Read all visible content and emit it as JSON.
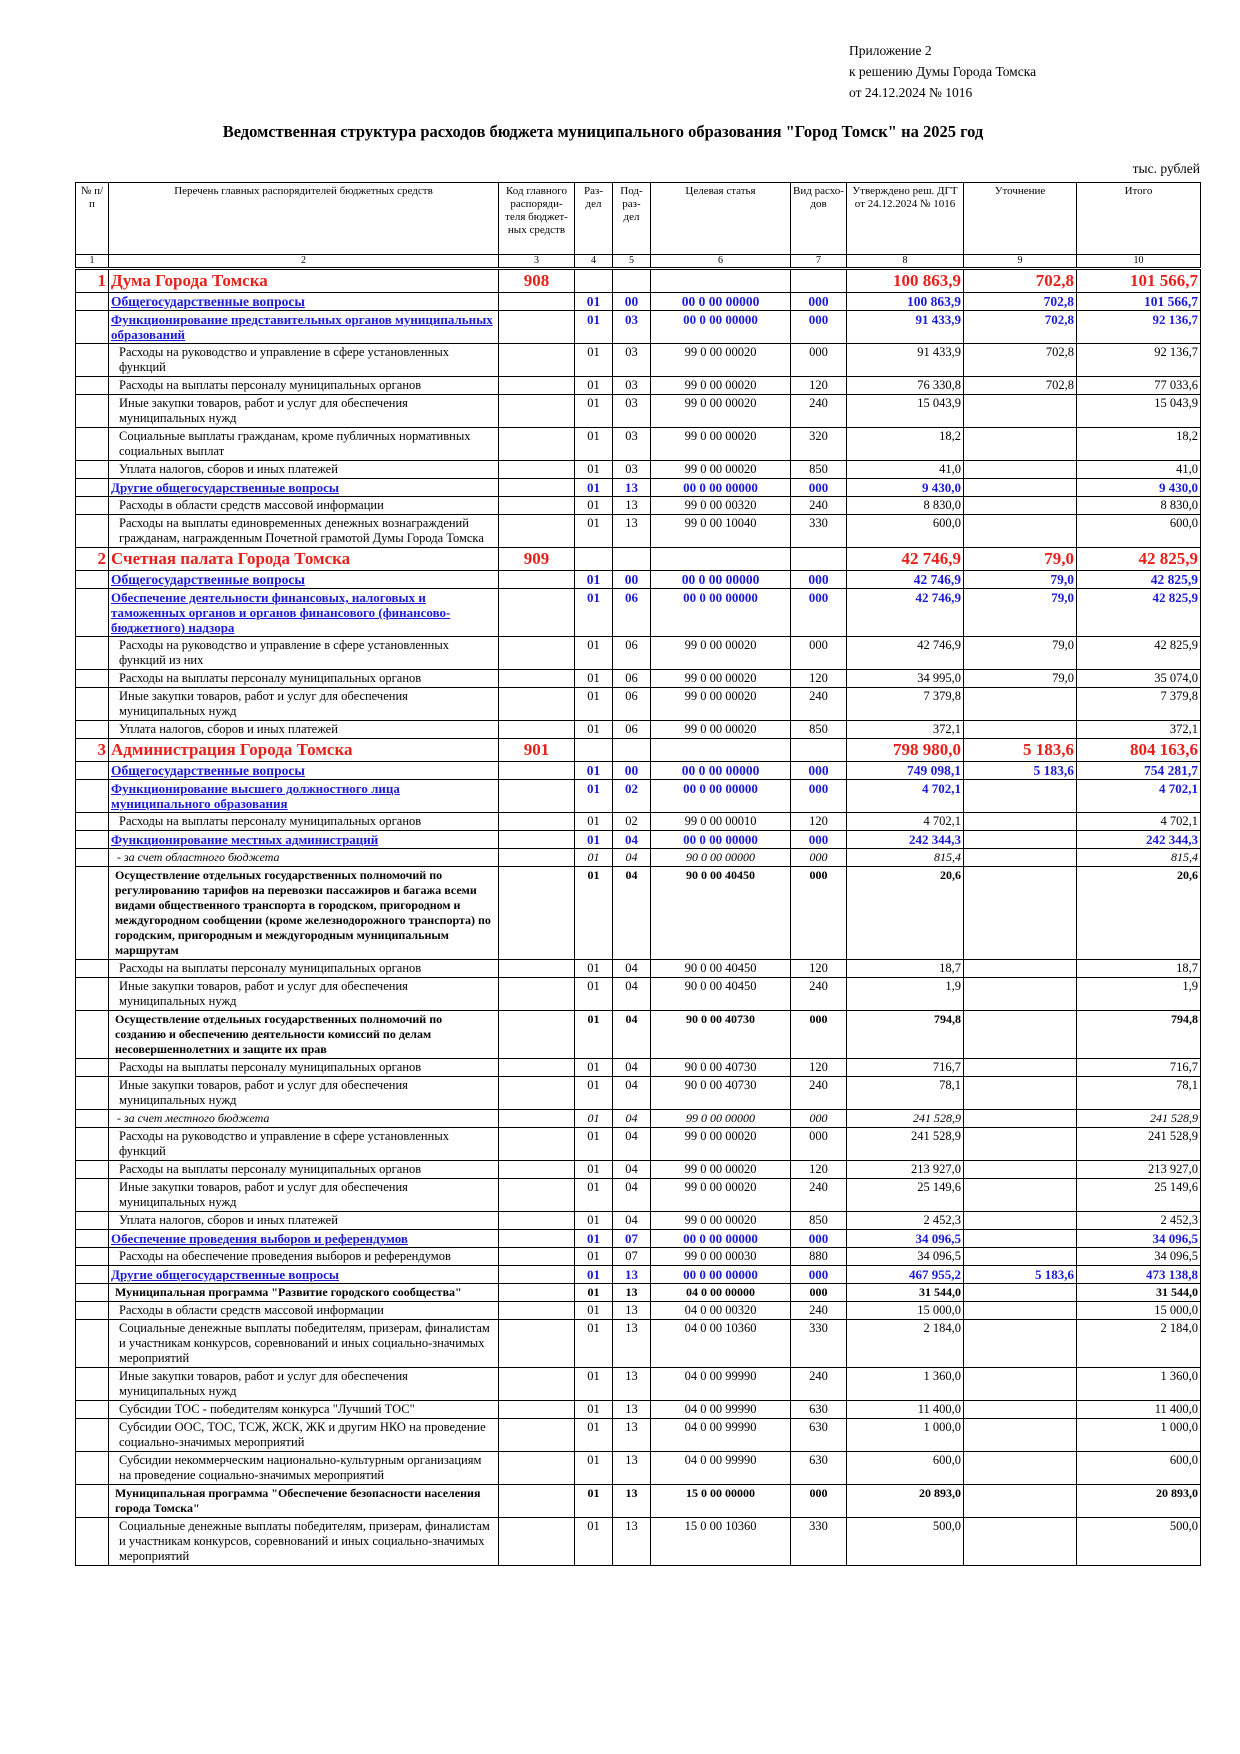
{
  "appendix": {
    "line1": "Приложение 2",
    "line2": "к решению Думы Города Томска",
    "line3": "от 24.12.2024 № 1016"
  },
  "title": "Ведомственная структура расходов бюджета муниципального образования \"Город Томск\" на 2025 год",
  "units": "тыс. рублей",
  "colors": {
    "org": "#e8201a",
    "section": "#1a1ad8"
  },
  "headers": [
    "№ п/п",
    "Перечень главных распорядителей бюджетных средств",
    "Код главного распоряди-теля бюджет-ных средств",
    "Раз-дел",
    "Под-раз-дел",
    "Целевая статья",
    "Вид расхо-дов",
    "Утверждено реш. ДГТ от 24.12.2024 № 1016",
    "Уточнение",
    "Итого"
  ],
  "col_numbers": [
    "1",
    "2",
    "3",
    "4",
    "5",
    "6",
    "7",
    "8",
    "9",
    "10"
  ],
  "rows": [
    {
      "level": "org",
      "num": "1",
      "name": "Дума Города Томска",
      "code": "908",
      "razdel": "",
      "podrazdel": "",
      "cs": "",
      "vr": "",
      "approved": "100 863,9",
      "change": "702,8",
      "total": "101 566,7"
    },
    {
      "level": "sec",
      "num": "",
      "name": "Общегосударственные вопросы",
      "code": "",
      "razdel": "01",
      "podrazdel": "00",
      "cs": "00 0 00 00000",
      "vr": "000",
      "approved": "100 863,9",
      "change": "702,8",
      "total": "101 566,7"
    },
    {
      "level": "sub",
      "num": "",
      "name": "Функционирование представительных органов муниципальных образований",
      "code": "",
      "razdel": "01",
      "podrazdel": "03",
      "cs": "00 0 00 00000",
      "vr": "000",
      "approved": "91 433,9",
      "change": "702,8",
      "total": "92 136,7"
    },
    {
      "level": "item",
      "num": "",
      "name": "Расходы на руководство и управление в сфере установленных функций",
      "code": "",
      "razdel": "01",
      "podrazdel": "03",
      "cs": "99 0 00 00020",
      "vr": "000",
      "approved": "91 433,9",
      "change": "702,8",
      "total": "92 136,7"
    },
    {
      "level": "item",
      "num": "",
      "name": "Расходы на выплаты персоналу муниципальных органов",
      "code": "",
      "razdel": "01",
      "podrazdel": "03",
      "cs": "99 0 00 00020",
      "vr": "120",
      "approved": "76 330,8",
      "change": "702,8",
      "total": "77 033,6"
    },
    {
      "level": "item",
      "num": "",
      "name": "Иные закупки товаров, работ и услуг для обеспечения муниципальных нужд",
      "code": "",
      "razdel": "01",
      "podrazdel": "03",
      "cs": "99 0 00 00020",
      "vr": "240",
      "approved": "15 043,9",
      "change": "",
      "total": "15 043,9"
    },
    {
      "level": "item",
      "num": "",
      "name": "Социальные выплаты гражданам, кроме публичных нормативных социальных выплат",
      "code": "",
      "razdel": "01",
      "podrazdel": "03",
      "cs": "99 0 00 00020",
      "vr": "320",
      "approved": "18,2",
      "change": "",
      "total": "18,2"
    },
    {
      "level": "item",
      "num": "",
      "name": "Уплата налогов, сборов и иных платежей",
      "code": "",
      "razdel": "01",
      "podrazdel": "03",
      "cs": "99 0 00 00020",
      "vr": "850",
      "approved": "41,0",
      "change": "",
      "total": "41,0"
    },
    {
      "level": "sub",
      "num": "",
      "name": "Другие общегосударственные вопросы",
      "code": "",
      "razdel": "01",
      "podrazdel": "13",
      "cs": "00 0 00 00000",
      "vr": "000",
      "approved": "9 430,0",
      "change": "",
      "total": "9 430,0"
    },
    {
      "level": "item",
      "num": "",
      "name": "Расходы в области средств массовой информации",
      "code": "",
      "razdel": "01",
      "podrazdel": "13",
      "cs": "99 0 00 00320",
      "vr": "240",
      "approved": "8 830,0",
      "change": "",
      "total": "8 830,0"
    },
    {
      "level": "item",
      "num": "",
      "name": "Расходы на выплаты единовременных денежных вознаграждений гражданам, награжденным Почетной грамотой Думы Города Томска",
      "code": "",
      "razdel": "01",
      "podrazdel": "13",
      "cs": "99 0 00 10040",
      "vr": "330",
      "approved": "600,0",
      "change": "",
      "total": "600,0"
    },
    {
      "level": "org",
      "num": "2",
      "name": "Счетная палата Города Томска",
      "code": "909",
      "razdel": "",
      "podrazdel": "",
      "cs": "",
      "vr": "",
      "approved": "42 746,9",
      "change": "79,0",
      "total": "42 825,9"
    },
    {
      "level": "sec",
      "num": "",
      "name": "Общегосударственные вопросы",
      "code": "",
      "razdel": "01",
      "podrazdel": "00",
      "cs": "00 0 00 00000",
      "vr": "000",
      "approved": "42 746,9",
      "change": "79,0",
      "total": "42 825,9"
    },
    {
      "level": "sub",
      "num": "",
      "name": "Обеспечение деятельности финансовых, налоговых и таможенных органов и органов финансового (финансово-бюджетного) надзора",
      "code": "",
      "razdel": "01",
      "podrazdel": "06",
      "cs": "00 0 00 00000",
      "vr": "000",
      "approved": "42 746,9",
      "change": "79,0",
      "total": "42 825,9"
    },
    {
      "level": "item",
      "num": "",
      "name": "Расходы на руководство и управление в сфере установленных функций из них",
      "code": "",
      "razdel": "01",
      "podrazdel": "06",
      "cs": "99 0 00 00020",
      "vr": "000",
      "approved": "42 746,9",
      "change": "79,0",
      "total": "42 825,9"
    },
    {
      "level": "item",
      "num": "",
      "name": "Расходы на выплаты персоналу муниципальных органов",
      "code": "",
      "razdel": "01",
      "podrazdel": "06",
      "cs": "99 0 00 00020",
      "vr": "120",
      "approved": "34 995,0",
      "change": "79,0",
      "total": "35 074,0"
    },
    {
      "level": "item",
      "num": "",
      "name": "Иные закупки товаров, работ и услуг для обеспечения муниципальных нужд",
      "code": "",
      "razdel": "01",
      "podrazdel": "06",
      "cs": "99 0 00 00020",
      "vr": "240",
      "approved": "7 379,8",
      "change": "",
      "total": "7 379,8"
    },
    {
      "level": "item",
      "num": "",
      "name": "Уплата налогов, сборов и иных платежей",
      "code": "",
      "razdel": "01",
      "podrazdel": "06",
      "cs": "99 0 00 00020",
      "vr": "850",
      "approved": "372,1",
      "change": "",
      "total": "372,1"
    },
    {
      "level": "org",
      "num": "3",
      "name": "Администрация Города Томска",
      "code": "901",
      "razdel": "",
      "podrazdel": "",
      "cs": "",
      "vr": "",
      "approved": "798 980,0",
      "change": "5 183,6",
      "total": "804 163,6"
    },
    {
      "level": "sec",
      "num": "",
      "name": "Общегосударственные вопросы",
      "code": "",
      "razdel": "01",
      "podrazdel": "00",
      "cs": "00 0 00 00000",
      "vr": "000",
      "approved": "749 098,1",
      "change": "5 183,6",
      "total": "754 281,7"
    },
    {
      "level": "sub",
      "num": "",
      "name": "Функционирование высшего должностного лица муниципального образования",
      "code": "",
      "razdel": "01",
      "podrazdel": "02",
      "cs": "00 0 00 00000",
      "vr": "000",
      "approved": "4 702,1",
      "change": "",
      "total": "4 702,1"
    },
    {
      "level": "item",
      "num": "",
      "name": "Расходы на выплаты персоналу муниципальных органов",
      "code": "",
      "razdel": "01",
      "podrazdel": "02",
      "cs": "99 0 00 00010",
      "vr": "120",
      "approved": "4 702,1",
      "change": "",
      "total": "4 702,1"
    },
    {
      "level": "sub",
      "num": "",
      "name": "Функционирование местных администраций",
      "code": "",
      "razdel": "01",
      "podrazdel": "04",
      "cs": "00 0 00 00000",
      "vr": "000",
      "approved": "242 344,3",
      "change": "",
      "total": "242 344,3"
    },
    {
      "level": "it",
      "num": "",
      "name": "- за счет областного бюджета",
      "code": "",
      "razdel": "01",
      "podrazdel": "04",
      "cs": "90 0 00 00000",
      "vr": "000",
      "approved": "815,4",
      "change": "",
      "total": "815,4"
    },
    {
      "level": "prog",
      "num": "",
      "name": "Осуществление отдельных государственных полномочий по регулированию тарифов на перевозки пассажиров и багажа всеми видами общественного транспорта в городском, пригородном и междугородном сообщении (кроме железнодорожного транспорта) по городским, пригородным и междугородным муниципальным маршрутам",
      "code": "",
      "razdel": "01",
      "podrazdel": "04",
      "cs": "90 0 00 40450",
      "vr": "000",
      "approved": "20,6",
      "change": "",
      "total": "20,6"
    },
    {
      "level": "item",
      "num": "",
      "name": "Расходы на выплаты персоналу муниципальных органов",
      "code": "",
      "razdel": "01",
      "podrazdel": "04",
      "cs": "90 0 00 40450",
      "vr": "120",
      "approved": "18,7",
      "change": "",
      "total": "18,7"
    },
    {
      "level": "item",
      "num": "",
      "name": "Иные закупки товаров, работ и услуг для обеспечения муниципальных нужд",
      "code": "",
      "razdel": "01",
      "podrazdel": "04",
      "cs": "90 0 00 40450",
      "vr": "240",
      "approved": "1,9",
      "change": "",
      "total": "1,9"
    },
    {
      "level": "prog",
      "num": "",
      "name": "Осуществление отдельных государственных полномочий по созданию и обеспечению деятельности комиссий по делам несовершеннолетних и защите их прав",
      "code": "",
      "razdel": "01",
      "podrazdel": "04",
      "cs": "90 0 00 40730",
      "vr": "000",
      "approved": "794,8",
      "change": "",
      "total": "794,8"
    },
    {
      "level": "item",
      "num": "",
      "name": "Расходы на выплаты персоналу муниципальных органов",
      "code": "",
      "razdel": "01",
      "podrazdel": "04",
      "cs": "90 0 00 40730",
      "vr": "120",
      "approved": "716,7",
      "change": "",
      "total": "716,7"
    },
    {
      "level": "item",
      "num": "",
      "name": "Иные закупки товаров, работ и услуг для обеспечения муниципальных нужд",
      "code": "",
      "razdel": "01",
      "podrazdel": "04",
      "cs": "90 0 00 40730",
      "vr": "240",
      "approved": "78,1",
      "change": "",
      "total": "78,1"
    },
    {
      "level": "it",
      "num": "",
      "name": "- за счет местного бюджета",
      "code": "",
      "razdel": "01",
      "podrazdel": "04",
      "cs": "99 0 00 00000",
      "vr": "000",
      "approved": "241 528,9",
      "change": "",
      "total": "241 528,9"
    },
    {
      "level": "item",
      "num": "",
      "name": "Расходы на руководство и управление в сфере установленных функций",
      "code": "",
      "razdel": "01",
      "podrazdel": "04",
      "cs": "99 0 00 00020",
      "vr": "000",
      "approved": "241 528,9",
      "change": "",
      "total": "241 528,9"
    },
    {
      "level": "item",
      "num": "",
      "name": "Расходы на выплаты персоналу муниципальных органов",
      "code": "",
      "razdel": "01",
      "podrazdel": "04",
      "cs": "99 0 00 00020",
      "vr": "120",
      "approved": "213 927,0",
      "change": "",
      "total": "213 927,0"
    },
    {
      "level": "item",
      "num": "",
      "name": "Иные закупки товаров, работ и услуг для обеспечения муниципальных нужд",
      "code": "",
      "razdel": "01",
      "podrazdel": "04",
      "cs": "99 0 00 00020",
      "vr": "240",
      "approved": "25 149,6",
      "change": "",
      "total": "25 149,6"
    },
    {
      "level": "item",
      "num": "",
      "name": "Уплата налогов, сборов и иных платежей",
      "code": "",
      "razdel": "01",
      "podrazdel": "04",
      "cs": "99 0 00 00020",
      "vr": "850",
      "approved": "2 452,3",
      "change": "",
      "total": "2 452,3"
    },
    {
      "level": "sub",
      "num": "",
      "name": "Обеспечение проведения выборов и референдумов",
      "code": "",
      "razdel": "01",
      "podrazdel": "07",
      "cs": "00 0 00 00000",
      "vr": "000",
      "approved": "34 096,5",
      "change": "",
      "total": "34 096,5"
    },
    {
      "level": "item",
      "num": "",
      "name": "Расходы на обеспечение проведения выборов и референдумов",
      "code": "",
      "razdel": "01",
      "podrazdel": "07",
      "cs": "99 0 00 00030",
      "vr": "880",
      "approved": "34 096,5",
      "change": "",
      "total": "34 096,5"
    },
    {
      "level": "sub",
      "num": "",
      "name": "Другие общегосударственные вопросы",
      "code": "",
      "razdel": "01",
      "podrazdel": "13",
      "cs": "00 0 00 00000",
      "vr": "000",
      "approved": "467 955,2",
      "change": "5 183,6",
      "total": "473 138,8"
    },
    {
      "level": "prog",
      "num": "",
      "name": "Муниципальная программа \"Развитие городского сообщества\"",
      "code": "",
      "razdel": "01",
      "podrazdel": "13",
      "cs": "04 0 00 00000",
      "vr": "000",
      "approved": "31 544,0",
      "change": "",
      "total": "31 544,0"
    },
    {
      "level": "item",
      "num": "",
      "name": "Расходы в области средств массовой информации",
      "code": "",
      "razdel": "01",
      "podrazdel": "13",
      "cs": "04 0 00 00320",
      "vr": "240",
      "approved": "15 000,0",
      "change": "",
      "total": "15 000,0"
    },
    {
      "level": "item",
      "num": "",
      "name": "Социальные денежные выплаты победителям, призерам, финалистам и участникам конкурсов, соревнований и иных социально-значимых мероприятий",
      "code": "",
      "razdel": "01",
      "podrazdel": "13",
      "cs": "04 0 00 10360",
      "vr": "330",
      "approved": "2 184,0",
      "change": "",
      "total": "2 184,0"
    },
    {
      "level": "item",
      "num": "",
      "name": "Иные закупки товаров, работ и услуг для обеспечения муниципальных нужд",
      "code": "",
      "razdel": "01",
      "podrazdel": "13",
      "cs": "04 0 00 99990",
      "vr": "240",
      "approved": "1 360,0",
      "change": "",
      "total": "1 360,0"
    },
    {
      "level": "item",
      "num": "",
      "name": "Субсидии ТОС - победителям конкурса \"Лучший ТОС\"",
      "code": "",
      "razdel": "01",
      "podrazdel": "13",
      "cs": "04 0 00 99990",
      "vr": "630",
      "approved": "11 400,0",
      "change": "",
      "total": "11 400,0"
    },
    {
      "level": "item",
      "num": "",
      "name": "Субсидии ООС, ТОС, ТСЖ, ЖСК, ЖК и другим НКО на проведение социально-значимых мероприятий",
      "code": "",
      "razdel": "01",
      "podrazdel": "13",
      "cs": "04 0 00 99990",
      "vr": "630",
      "approved": "1 000,0",
      "change": "",
      "total": "1 000,0"
    },
    {
      "level": "item",
      "num": "",
      "name": "Субсидии некоммерческим национально-культурным организациям на проведение социально-значимых мероприятий",
      "code": "",
      "razdel": "01",
      "podrazdel": "13",
      "cs": "04 0 00 99990",
      "vr": "630",
      "approved": "600,0",
      "change": "",
      "total": "600,0"
    },
    {
      "level": "prog",
      "num": "",
      "name": "Муниципальная программа \"Обеспечение безопасности населения города Томска\"",
      "code": "",
      "razdel": "01",
      "podrazdel": "13",
      "cs": "15 0 00 00000",
      "vr": "000",
      "approved": "20 893,0",
      "change": "",
      "total": "20 893,0"
    },
    {
      "level": "item",
      "num": "",
      "name": "Социальные денежные выплаты победителям, призерам, финалистам и участникам конкурсов, соревнований и иных социально-значимых мероприятий",
      "code": "",
      "razdel": "01",
      "podrazdel": "13",
      "cs": "15 0 00 10360",
      "vr": "330",
      "approved": "500,0",
      "change": "",
      "total": "500,0"
    }
  ]
}
